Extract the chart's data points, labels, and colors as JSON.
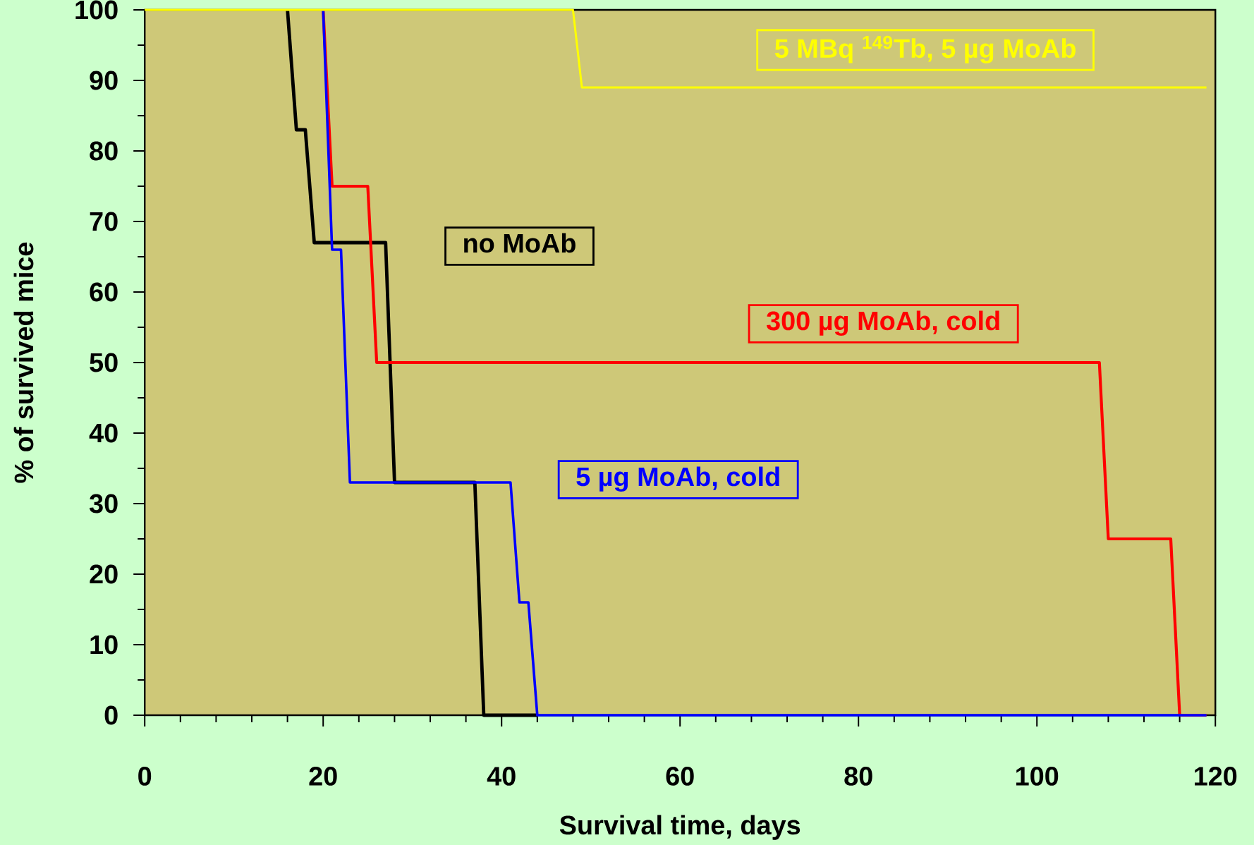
{
  "chart_data": {
    "type": "line",
    "xlabel": "Survival time, days",
    "ylabel": "% of survived mice",
    "xlim": [
      0,
      120
    ],
    "ylim": [
      0,
      100
    ],
    "xticks": [
      0,
      20,
      40,
      60,
      80,
      100,
      120
    ],
    "yticks": [
      0,
      10,
      20,
      30,
      40,
      50,
      60,
      70,
      80,
      90,
      100
    ],
    "legend": false,
    "line_style": "solid",
    "series": [
      {
        "name": "no MoAb",
        "color": "#000000",
        "x": [
          16,
          17,
          18,
          19,
          27,
          28,
          37,
          38,
          44
        ],
        "values": [
          100,
          83,
          83,
          67,
          67,
          33,
          33,
          0,
          0
        ]
      },
      {
        "name": "300 µg MoAb, cold",
        "color": "#ff0000",
        "x": [
          20,
          21,
          25,
          26,
          107,
          108,
          115,
          116,
          119
        ],
        "values": [
          100,
          75,
          75,
          50,
          50,
          25,
          25,
          0,
          0
        ]
      },
      {
        "name": "5 µg MoAb, cold",
        "color": "#0000ff",
        "x": [
          20,
          21,
          22,
          23,
          41,
          42,
          43,
          44,
          119
        ],
        "values": [
          100,
          66,
          66,
          33,
          33,
          16,
          16,
          0,
          0
        ]
      },
      {
        "name": "5 MBq $^{149}$Tb, 5 µg MoAb",
        "color": "#ffff00",
        "x": [
          0,
          48,
          49,
          119
        ],
        "values": [
          100,
          100,
          89,
          89
        ]
      }
    ]
  }
}
